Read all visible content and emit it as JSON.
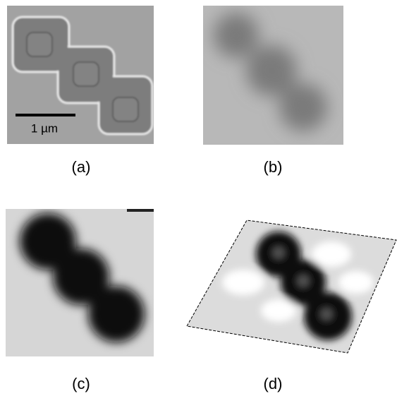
{
  "panels": [
    {
      "label": "(a)",
      "scale_bar": "1 µm"
    },
    {
      "label": "(b)"
    },
    {
      "label": "(c)"
    },
    {
      "label": "(d)"
    }
  ]
}
